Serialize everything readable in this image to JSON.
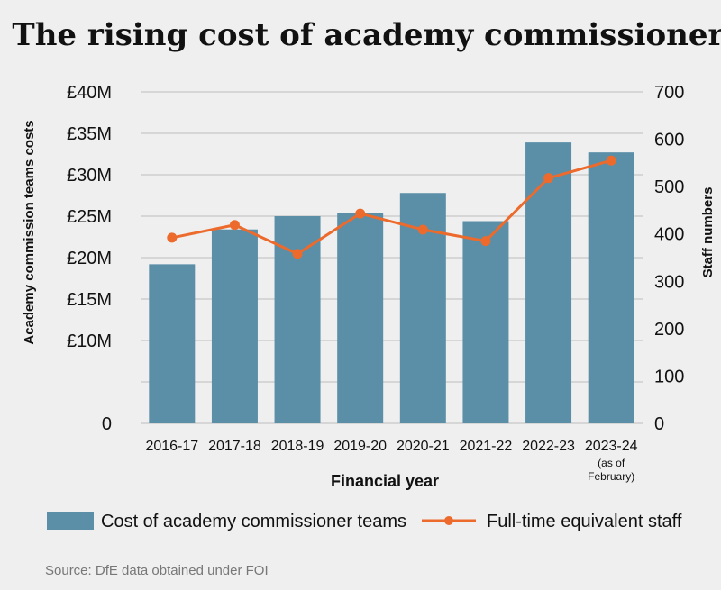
{
  "chart_data": {
    "type": "bar",
    "title": "The rising cost of academy commissioners",
    "xlabel": "Financial year",
    "ylabel": "Academy commission teams costs",
    "y2label": "Staff numbers",
    "categories": [
      "2016-17",
      "2017-18",
      "2018-19",
      "2019-20",
      "2020-21",
      "2021-22",
      "2022-23",
      "2023-24"
    ],
    "category_notes": [
      "",
      "",
      "",
      "",
      "",
      "",
      "",
      "(as of February)"
    ],
    "category_note_lines": [
      "(as of",
      "February)"
    ],
    "ylim": [
      0,
      40
    ],
    "y2lim": [
      0,
      700
    ],
    "yticks": [
      0,
      10,
      15,
      20,
      25,
      30,
      35,
      40
    ],
    "ytick_labels": [
      "0",
      "£10M",
      "£15M",
      "£20M",
      "£25M",
      "£30M",
      "£35M",
      "£40M"
    ],
    "y2ticks": [
      0,
      100,
      200,
      300,
      400,
      500,
      600,
      700
    ],
    "y2tick_labels": [
      "0",
      "100",
      "200",
      "300",
      "400",
      "500",
      "600",
      "700"
    ],
    "grid": true,
    "legend_position": "bottom",
    "series": [
      {
        "name": "Cost of academy commissioner teams",
        "type": "bar",
        "axis": "left",
        "color": "#5b8fa8",
        "values": [
          19.2,
          23.4,
          25.0,
          25.4,
          27.8,
          24.4,
          33.9,
          32.7
        ]
      },
      {
        "name": "Full-time equivalent staff",
        "type": "line",
        "axis": "right",
        "color": "#ec6a2c",
        "values": [
          392,
          419,
          358,
          443,
          409,
          385,
          518,
          555
        ]
      }
    ]
  },
  "source": "Source: DfE data obtained under FOI"
}
